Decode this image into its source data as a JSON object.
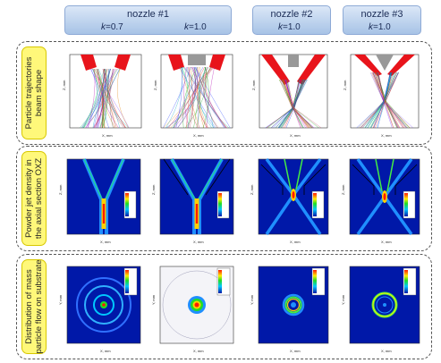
{
  "headers": [
    {
      "title": "nozzle #1",
      "k": [
        {
          "var": "k",
          "val": "=0.7"
        },
        {
          "var": "k",
          "val": "=1.0"
        }
      ]
    },
    {
      "title": "nozzle #2",
      "k": [
        {
          "var": "k",
          "val": "=1.0"
        }
      ]
    },
    {
      "title": "nozzle #3",
      "k": [
        {
          "var": "k",
          "val": "=1.0"
        }
      ]
    }
  ],
  "rows": [
    {
      "label": "Particle trajectories\nbeam shape"
    },
    {
      "label": "Powder jet density in\nthe axial section OXZ"
    },
    {
      "label": "Distribution of mass\nparticle flow on substrate"
    }
  ],
  "axes": {
    "row1": {
      "xlabel": "X, mm",
      "ylabel": "Z, mm"
    },
    "row2": {
      "xlabel": "X, mm",
      "ylabel": "Z, mm"
    },
    "row3": {
      "xlabel": "X, mm",
      "ylabel": "Y, mm"
    }
  },
  "colors": {
    "jet_background": "#0018a8",
    "nozzle": "#e8141b",
    "header_bg": "#b9d0ee",
    "label_bg": "#fff87a"
  }
}
